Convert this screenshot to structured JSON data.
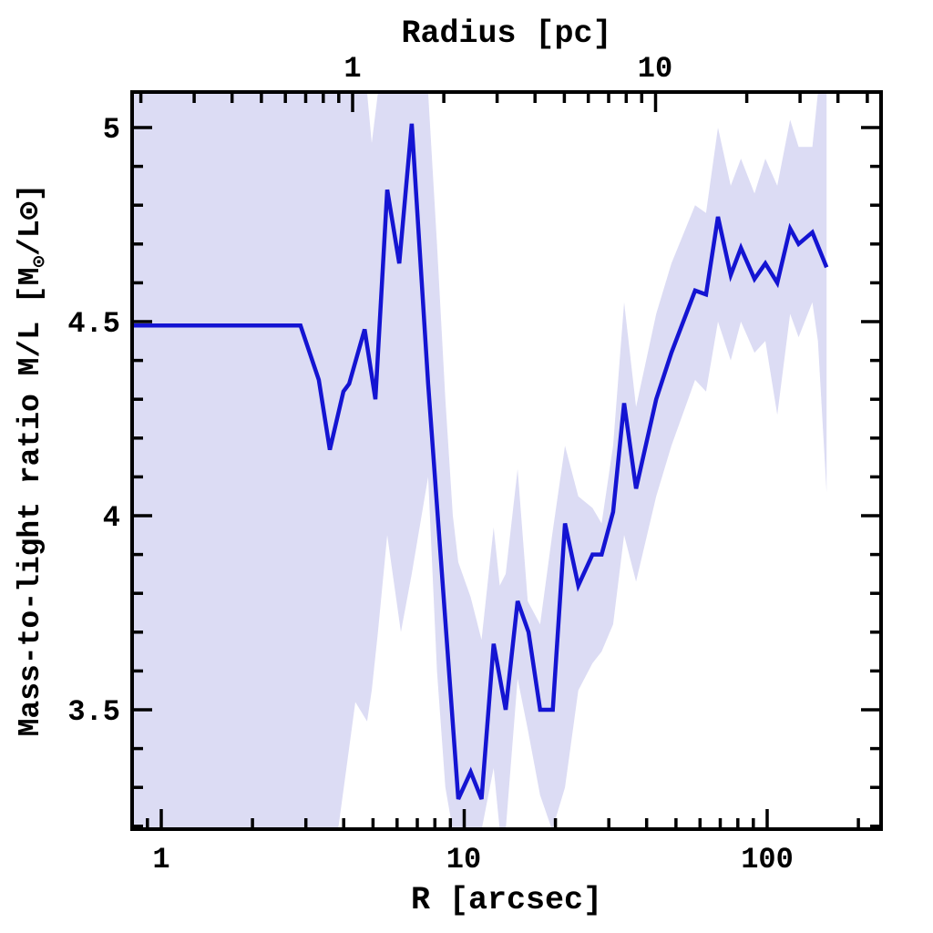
{
  "figure": {
    "background_color": "#ffffff",
    "frame_color": "#000000",
    "line_color": "#1414d2",
    "band_color": "#dcdcf4",
    "text_color": "#000000"
  },
  "chart_data": {
    "type": "line",
    "title": "",
    "xlabel": "R [arcsec]",
    "top_axis_label": "Radius [pc]",
    "ylabel": "Mass-to-light ratio M/L [M⊙/L⊙]",
    "ylabel_parts": {
      "pre": "Mass-to-light ratio M/L [M",
      "sub": "⊙",
      "post": "/L⊙]"
    },
    "x_scale": "log",
    "xlim_arcsec": [
      0.801,
      237.6
    ],
    "ylim": [
      3.1925,
      5.0916
    ],
    "arcsec_per_pc": 4.28,
    "grid": "off",
    "legend": "none",
    "axes": {
      "bottom": {
        "label": "R [arcsec]",
        "major_ticks": [
          1,
          10,
          100
        ],
        "major_labels": [
          "1",
          "10",
          "100"
        ],
        "minor_ticks": [
          0.9,
          2,
          3,
          4,
          5,
          6,
          7,
          8,
          9,
          20,
          30,
          40,
          50,
          60,
          70,
          80,
          90,
          200
        ]
      },
      "top": {
        "label": "Radius [pc]",
        "unit": "pc",
        "major_ticks": [
          1,
          10
        ],
        "major_labels": [
          "1",
          "10"
        ],
        "minor_ticks": [
          0.2,
          0.3,
          0.4,
          0.5,
          0.6,
          0.7,
          0.8,
          0.9,
          2,
          3,
          4,
          5,
          6,
          7,
          8,
          9,
          20,
          30,
          40,
          50
        ]
      },
      "left": {
        "major_ticks": [
          3.5,
          4,
          4.5,
          5
        ],
        "major_labels": [
          "3.5",
          "4",
          "4.5",
          "5"
        ],
        "minor_ticks": [
          3.2,
          3.3,
          3.4,
          3.6,
          3.7,
          3.8,
          3.9,
          4.1,
          4.2,
          4.3,
          4.4,
          4.6,
          4.7,
          4.8,
          4.9
        ]
      }
    },
    "series": [
      {
        "name": "M/L radial profile",
        "x_arcsec": [
          0.8,
          2.88,
          3.31,
          3.6,
          3.99,
          4.17,
          4.69,
          5.09,
          5.57,
          6.1,
          6.71,
          7.6,
          9.56,
          10.5,
          11.4,
          12.5,
          13.7,
          15.0,
          16.3,
          17.8,
          19.6,
          21.5,
          23.8,
          26.5,
          28.4,
          31.0,
          33.7,
          36.9,
          43.0,
          48.3,
          57.8,
          62.8,
          68.8,
          75.8,
          81.9,
          90.8,
          98.6,
          108,
          119,
          127,
          141,
          157
        ],
        "y": [
          4.49,
          4.49,
          4.35,
          4.17,
          4.32,
          4.34,
          4.48,
          4.3,
          4.84,
          4.65,
          5.01,
          4.34,
          3.27,
          3.34,
          3.27,
          3.67,
          3.5,
          3.78,
          3.7,
          3.5,
          3.5,
          3.98,
          3.82,
          3.9,
          3.9,
          4.01,
          4.29,
          4.07,
          4.3,
          4.42,
          4.58,
          4.57,
          4.77,
          4.62,
          4.69,
          4.61,
          4.65,
          4.6,
          4.74,
          4.7,
          4.73,
          4.64
        ]
      }
    ],
    "uncertainty_band": {
      "name": "M/L uncertainty band",
      "x_arcsec": [
        0.8,
        3.83,
        4.37,
        4.78,
        4.95,
        5.19,
        5.57,
        6.18,
        6.71,
        7.6,
        8.13,
        8.66,
        9.17,
        9.56,
        10.5,
        11.4,
        12.5,
        13.1,
        13.7,
        15.0,
        16.2,
        17.8,
        19.5,
        21.5,
        23.8,
        26.5,
        28.4,
        31.0,
        33.7,
        36.9,
        43.0,
        48.3,
        57.8,
        62.8,
        68.8,
        75.8,
        81.9,
        90.8,
        98.6,
        108,
        119,
        127,
        141,
        147,
        157
      ],
      "upper": [
        5.09,
        5.09,
        5.09,
        5.09,
        4.96,
        5.09,
        5.09,
        5.09,
        5.09,
        5.09,
        4.7,
        4.3,
        4.0,
        3.88,
        3.79,
        3.68,
        3.97,
        3.82,
        3.85,
        4.12,
        3.78,
        3.72,
        3.95,
        4.18,
        4.05,
        4.02,
        3.98,
        4.18,
        4.55,
        4.28,
        4.52,
        4.65,
        4.8,
        4.78,
        5.0,
        4.85,
        4.92,
        4.83,
        4.92,
        4.85,
        5.02,
        4.95,
        4.95,
        5.09,
        5.09
      ],
      "lower": [
        3.19,
        3.19,
        3.52,
        3.47,
        3.55,
        3.7,
        3.95,
        3.7,
        3.85,
        4.1,
        3.6,
        3.3,
        3.19,
        3.19,
        3.19,
        3.19,
        3.35,
        3.19,
        3.19,
        3.58,
        3.45,
        3.28,
        3.19,
        3.3,
        3.55,
        3.62,
        3.65,
        3.72,
        3.95,
        3.83,
        4.05,
        4.18,
        4.35,
        4.32,
        4.5,
        4.4,
        4.5,
        4.42,
        4.45,
        4.26,
        4.52,
        4.46,
        4.55,
        4.45,
        4.06
      ]
    }
  }
}
